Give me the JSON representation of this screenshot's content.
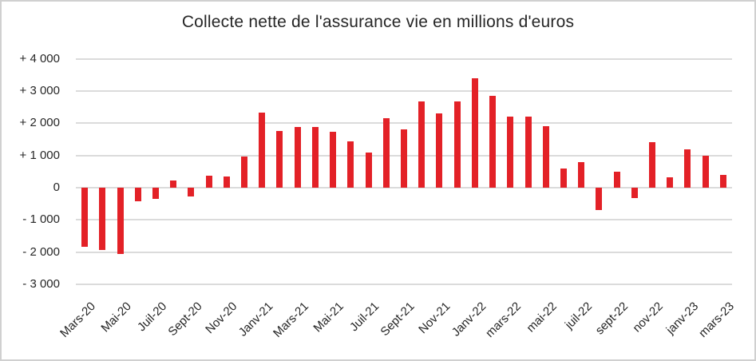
{
  "page": {
    "background_color": "#FFFFFF",
    "border_color": "#D0D0D0"
  },
  "chart_data": {
    "type": "bar",
    "title": "Collecte nette de l'assurance vie en millions d'euros",
    "bar_color": "#E32127",
    "gridline_color": "#DBDBDB",
    "text_color": "#262626",
    "grid": true,
    "legend_position": "none",
    "x_tick_labels": [
      "Mars-20",
      "Mai-20",
      "Juil-20",
      "Sept-20",
      "Nov-20",
      "Janv-21",
      "Mars-21",
      "Mai-21",
      "Juil-21",
      "Sept-21",
      "Nov-21",
      "Janv-22",
      "mars-22",
      "mai-22",
      "juil-22",
      "sept-22",
      "nov-22",
      "janv-23",
      "mars-23"
    ],
    "tick_step": 2,
    "values": [
      -1840,
      -1930,
      -2060,
      -430,
      -350,
      230,
      -270,
      360,
      350,
      970,
      2330,
      1770,
      1890,
      1880,
      1740,
      1440,
      1100,
      2160,
      1820,
      2680,
      2300,
      2680,
      3400,
      2860,
      2210,
      2200,
      1900,
      600,
      790,
      -690,
      500,
      -310,
      1420,
      310,
      1190,
      1000,
      390
    ],
    "y_axis": {
      "min": -3000,
      "max": 4000,
      "step": 1000,
      "tick_labels": [
        "+ 4 000",
        "+ 3 000",
        "+ 2 000",
        "+ 1 000",
        "0",
        "- 1 000",
        "- 2 000",
        "- 3 000"
      ]
    }
  }
}
